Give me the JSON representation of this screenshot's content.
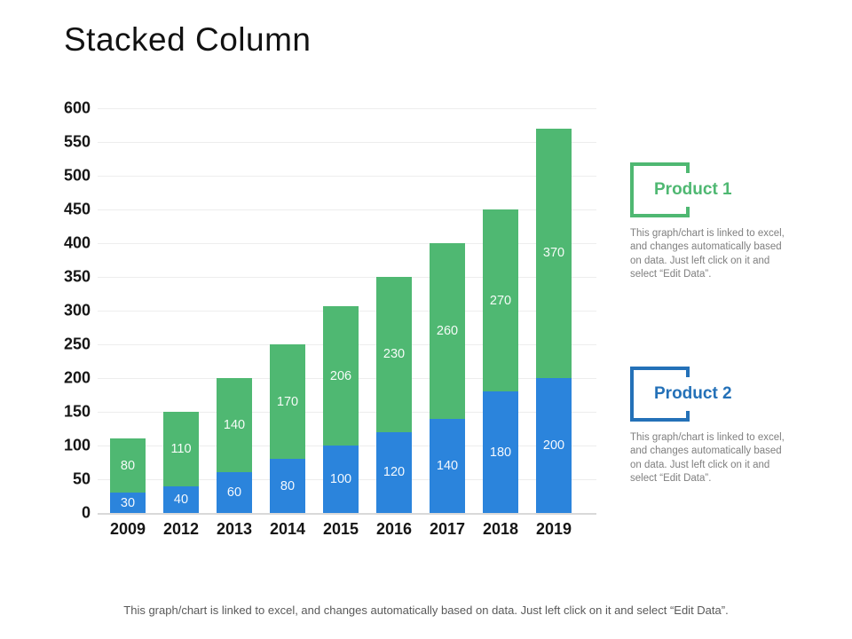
{
  "slide": {
    "title": "Stacked Column",
    "footer": "This graph/chart is linked to excel, and changes automatically based on data. Just left click on it and select “Edit Data”."
  },
  "chart_data": {
    "type": "bar",
    "stacked": true,
    "title": "Stacked Column",
    "categories": [
      "2009",
      "2012",
      "2013",
      "2014",
      "2015",
      "2016",
      "2017",
      "2018",
      "2019"
    ],
    "series": [
      {
        "name": "Product 2",
        "color": "#2b84dc",
        "values": [
          30,
          40,
          60,
          80,
          100,
          120,
          140,
          180,
          200
        ]
      },
      {
        "name": "Product 1",
        "color": "#4fb872",
        "values": [
          80,
          110,
          140,
          170,
          206,
          230,
          260,
          270,
          370
        ]
      }
    ],
    "xlabel": "",
    "ylabel": "",
    "ylim": [
      0,
      600
    ],
    "ytick_step": 50,
    "yticks": [
      0,
      50,
      100,
      150,
      200,
      250,
      300,
      350,
      400,
      450,
      500,
      550,
      600
    ],
    "grid": true,
    "data_labels": true,
    "data_label_color": "#ffffff",
    "legend_position": "right"
  },
  "legend": {
    "items": [
      {
        "label": "Product 1",
        "color": "#4fb872",
        "description_lines": [
          "This graph/chart is linked to excel,",
          "and changes automatically based",
          "on data. Just left click on it and",
          "select “Edit Data”."
        ]
      },
      {
        "label": "Product 2",
        "color": "#2471b8",
        "description_lines": [
          "This graph/chart is linked to excel,",
          "and changes automatically based",
          "on data. Just left click on it and",
          "select “Edit Data”."
        ]
      }
    ]
  }
}
